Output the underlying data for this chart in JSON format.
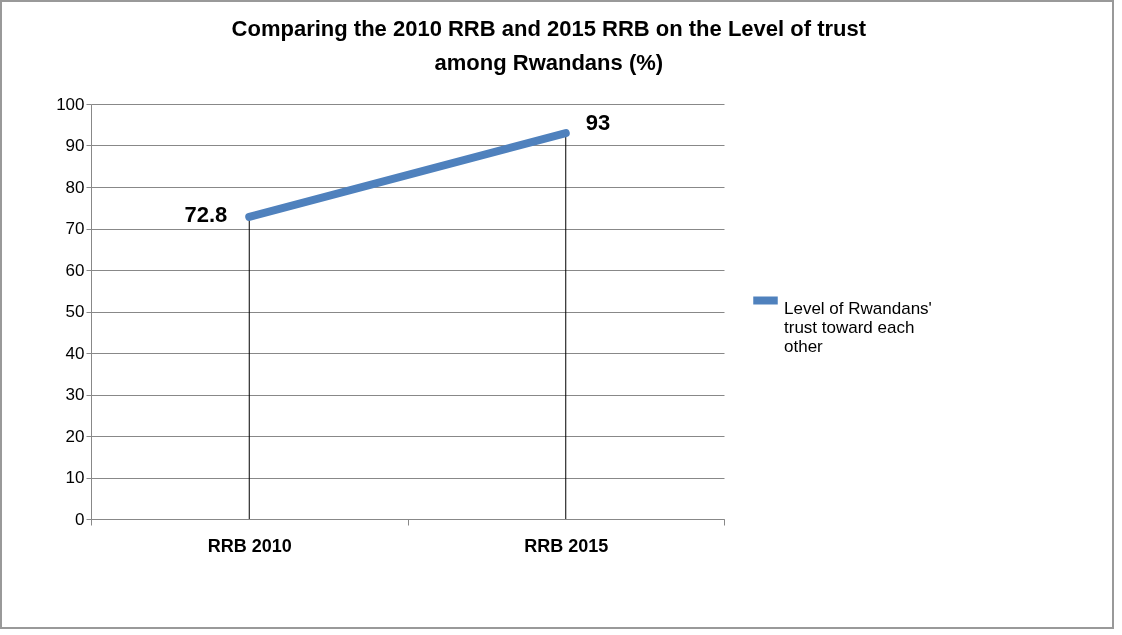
{
  "chart_data": {
    "type": "line",
    "title": "Comparing the 2010 RRB and 2015 RRB on the Level of trust among Rwandans (%)",
    "categories": [
      "RRB 2010",
      "RRB 2015"
    ],
    "series": [
      {
        "name": "Level of Rwandans' trust  toward each other",
        "color": "#4f81bd",
        "values": [
          72.8,
          93
        ]
      }
    ],
    "ylim": [
      0,
      100
    ],
    "yticks": [
      0,
      10,
      20,
      30,
      40,
      50,
      60,
      70,
      80,
      90,
      100
    ],
    "grid": true,
    "legend": "right",
    "data_labels": true,
    "marker": "none",
    "line_style": "solid"
  }
}
